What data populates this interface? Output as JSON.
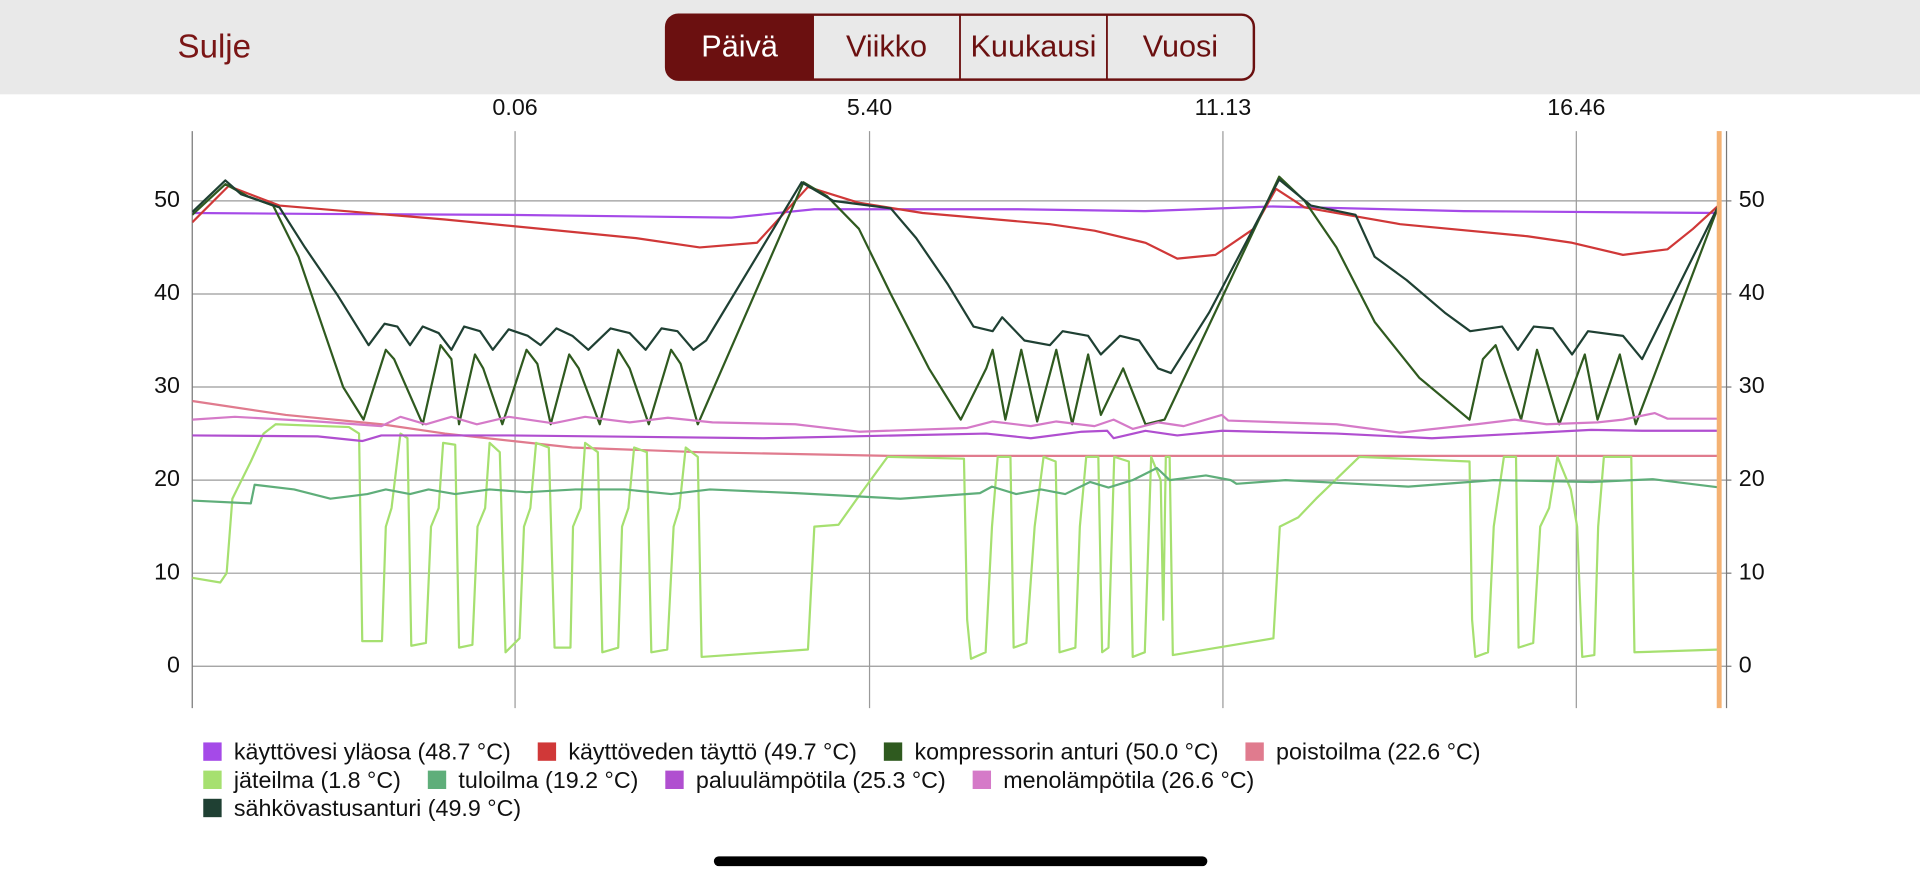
{
  "header": {
    "close": "Sulje",
    "tabs": [
      "Päivä",
      "Viikko",
      "Kuukausi",
      "Vuosi"
    ],
    "active_tab": 0
  },
  "chart_data": {
    "type": "line",
    "xlim": [
      -4.97,
      19.03
    ],
    "xticks": [
      {
        "value": 0.1,
        "label": "0.06"
      },
      {
        "value": 5.667,
        "label": "5.40"
      },
      {
        "value": 11.217,
        "label": "11.13"
      },
      {
        "value": 16.767,
        "label": "16.46"
      }
    ],
    "ylim": [
      -4.5,
      57.5
    ],
    "yticks": [
      0,
      10,
      20,
      30,
      40,
      50
    ],
    "y2lim": [
      -4.5,
      57.5
    ],
    "y2ticks": [
      0,
      10,
      20,
      30,
      40,
      50
    ],
    "grid": true,
    "series": [
      {
        "name": "käyttövesi yläosa (48.7 °C)",
        "color": "#a54ae8",
        "x": [
          -4.97,
          -3,
          0,
          3.5,
          4.8,
          8,
          10,
          12,
          15,
          19.03
        ],
        "values": [
          48.7,
          48.6,
          48.5,
          48.2,
          49.1,
          49.1,
          48.9,
          49.4,
          48.9,
          48.7
        ]
      },
      {
        "name": "käyttöveden täyttö (49.7 °C)",
        "color": "#d03838",
        "x": [
          -4.97,
          -4.4,
          -3.6,
          -1,
          2,
          3,
          3.9,
          4.7,
          5.5,
          6.5,
          8.5,
          9.2,
          10,
          10.5,
          11.1,
          11.7,
          12.05,
          12.5,
          14,
          16,
          16.7,
          17.5,
          18.2,
          18.6,
          19.03
        ],
        "values": [
          47.7,
          51.6,
          49.5,
          48,
          46,
          45,
          45.5,
          51.5,
          49.8,
          48.7,
          47.5,
          46.8,
          45.5,
          43.8,
          44.2,
          47,
          51.3,
          49.3,
          47.5,
          46.2,
          45.5,
          44.2,
          44.8,
          47,
          49.7
        ]
      },
      {
        "name": "kompressorin anturi (50.0 °C)",
        "color": "#2f5a1f",
        "x": [
          -4.97,
          -4.45,
          -4.1,
          -3.7,
          -3.3,
          -2.9,
          -2.6,
          -2.28,
          -1.93,
          -1.8,
          -1.35,
          -1.07,
          -0.9,
          -0.78,
          -0.53,
          -0.4,
          -0.1,
          0.28,
          0.45,
          0.66,
          0.95,
          1.1,
          1.43,
          1.72,
          1.9,
          2.2,
          2.55,
          2.7,
          2.97,
          4.63,
          5.0,
          5.5,
          6.0,
          6.6,
          7.1,
          7.5,
          7.6,
          7.8,
          8.05,
          8.3,
          8.6,
          8.85,
          9.1,
          9.3,
          9.65,
          10.0,
          10.3,
          12.1,
          12.5,
          13.0,
          13.6,
          14.3,
          15.09,
          15.3,
          15.5,
          15.9,
          16.15,
          16.5,
          16.9,
          17.1,
          17.45,
          17.7,
          19.03
        ],
        "values": [
          48.5,
          51.8,
          50.5,
          49.5,
          44,
          36,
          30,
          26.5,
          34,
          33,
          26,
          34.5,
          33,
          26,
          33.5,
          32,
          26,
          34,
          32.5,
          26,
          33.5,
          32,
          26,
          34,
          32,
          26,
          34,
          32.5,
          26,
          52,
          50.5,
          47,
          40,
          32,
          26.5,
          32,
          34,
          26.5,
          34,
          26.3,
          34,
          26,
          33.5,
          27,
          32,
          26,
          26.5,
          52.6,
          50,
          45,
          37,
          31,
          26.5,
          33,
          34.5,
          26.5,
          34,
          26,
          33.5,
          26.5,
          33.5,
          26,
          50
        ]
      },
      {
        "name": "poistoilma (22.6 °C)",
        "color": "#e07b8e",
        "x": [
          -4.97,
          -3.5,
          -2,
          -1,
          1,
          3,
          6,
          19.03
        ],
        "values": [
          28.5,
          27,
          26,
          25,
          23.5,
          23,
          22.6,
          22.6
        ]
      },
      {
        "name": "jäteilma (1.8 °C)",
        "color": "#a6e070",
        "x": [
          -4.97,
          -4.53,
          -4.43,
          -4.34,
          -4.05,
          -3.85,
          -3.66,
          -2.51,
          -2.35,
          -2.3,
          -1.99,
          -1.93,
          -1.84,
          -1.7,
          -1.59,
          -1.53,
          -1.3,
          -1.22,
          -1.1,
          -1.03,
          -0.84,
          -0.78,
          -0.57,
          -0.49,
          -0.37,
          -0.3,
          -0.14,
          -0.05,
          0.17,
          0.24,
          0.34,
          0.43,
          0.63,
          0.72,
          0.97,
          1.01,
          1.13,
          1.2,
          1.4,
          1.47,
          1.72,
          1.78,
          1.88,
          1.97,
          2.17,
          2.24,
          2.49,
          2.59,
          2.68,
          2.78,
          2.97,
          3.03,
          4.7,
          4.8,
          5.18,
          5.47,
          5.95,
          7.15,
          7.2,
          7.26,
          7.49,
          7.59,
          7.68,
          7.88,
          7.93,
          8.13,
          8.26,
          8.4,
          8.59,
          8.65,
          8.9,
          8.97,
          9.07,
          9.26,
          9.32,
          9.42,
          9.51,
          9.74,
          9.8,
          9.99,
          10.09,
          10.24,
          10.28,
          10.32,
          10.38,
          10.43,
          12.01,
          12.11,
          12.4,
          12.68,
          13.36,
          15.09,
          15.13,
          15.18,
          15.38,
          15.47,
          15.63,
          15.82,
          15.86,
          16.09,
          16.2,
          16.34,
          16.47,
          16.68,
          16.78,
          16.86,
          17.05,
          17.11,
          17.2,
          17.63,
          17.68,
          19.03
        ],
        "values": [
          9.5,
          9,
          10,
          18,
          22,
          25,
          26,
          25.7,
          25,
          2.7,
          2.7,
          15,
          17,
          25,
          24.5,
          2.2,
          2.5,
          15,
          17,
          24,
          23.8,
          2,
          2.3,
          15,
          17,
          24,
          23,
          1.5,
          3,
          15,
          17,
          24,
          23.5,
          2,
          2,
          15,
          17,
          24,
          23,
          1.5,
          2,
          15,
          17,
          23.5,
          23,
          1.5,
          1.8,
          15,
          17,
          23.5,
          22.5,
          1,
          1.8,
          15,
          15.2,
          18,
          22.5,
          22.3,
          5,
          0.8,
          1.5,
          15,
          22.5,
          22.5,
          2,
          2.5,
          15,
          22.5,
          22,
          1.5,
          2,
          15,
          22.5,
          22.5,
          1.5,
          2,
          22.5,
          22,
          1,
          1.5,
          22.5,
          20,
          5,
          22.5,
          22.5,
          1.2,
          3,
          15,
          16,
          18,
          22.5,
          22,
          5,
          1,
          1.5,
          15,
          22.5,
          22.5,
          2,
          2.5,
          15,
          17,
          22.5,
          19,
          15,
          1,
          1.2,
          15,
          22.5,
          22.5,
          1.5,
          1.8
        ]
      },
      {
        "name": "tuloilma (19.2 °C)",
        "color": "#5fae7a",
        "x": [
          -4.97,
          -4.05,
          -3.99,
          -3.37,
          -2.8,
          -2.22,
          -1.93,
          -1.55,
          -1.26,
          -0.84,
          -0.3,
          0.28,
          1.05,
          1.82,
          2.55,
          3.16,
          4.51,
          6.15,
          7.4,
          7.59,
          7.97,
          8.36,
          8.74,
          9.13,
          9.42,
          9.8,
          10.18,
          10.38,
          10.95,
          11.34,
          11.43,
          12.2,
          14.13,
          15.47,
          17.01,
          17.97,
          19.03
        ],
        "values": [
          17.8,
          17.5,
          19.5,
          19,
          18,
          18.5,
          19,
          18.5,
          19,
          18.5,
          19,
          18.7,
          19,
          19,
          18.5,
          19,
          18.6,
          18,
          18.6,
          19.3,
          18.5,
          19,
          18.5,
          19.8,
          19.2,
          20,
          21.3,
          20,
          20.5,
          20,
          19.6,
          20,
          19.3,
          20,
          19.8,
          20.1,
          19.2
        ]
      },
      {
        "name": "paluulämpötila (25.3 °C)",
        "color": "#b04fd0",
        "x": [
          -4.97,
          -3,
          -2.3,
          -2,
          0,
          4,
          7.5,
          8.2,
          9,
          9.4,
          9.5,
          10,
          10.5,
          11.2,
          13,
          14.5,
          17,
          17.8,
          19.03
        ],
        "values": [
          24.8,
          24.7,
          24.2,
          24.8,
          24.8,
          24.5,
          25,
          24.5,
          25.2,
          25.3,
          24.5,
          25.3,
          24.8,
          25.3,
          25,
          24.5,
          25.4,
          25.3,
          25.3
        ]
      },
      {
        "name": "menolämpötila (26.6 °C)",
        "color": "#d57ac8",
        "x": [
          -4.97,
          -4.3,
          -3,
          -2,
          -1.7,
          -1.3,
          -0.9,
          -0.5,
          0,
          0.7,
          1.2,
          1.9,
          2.5,
          3.2,
          4.5,
          5.5,
          7.2,
          7.6,
          8.2,
          8.6,
          9.2,
          9.5,
          9.8,
          10.2,
          10.6,
          11.2,
          11.3,
          13,
          14,
          15.2,
          15.8,
          16.3,
          17.1,
          17.5,
          18,
          18.2,
          19.03
        ],
        "values": [
          26.5,
          26.8,
          26.3,
          25.8,
          26.8,
          26,
          26.8,
          26,
          26.8,
          26.1,
          26.8,
          26.2,
          26.7,
          26.2,
          26,
          25.2,
          25.6,
          26.3,
          25.8,
          26.3,
          25.8,
          26.5,
          25.5,
          26.2,
          25.8,
          27,
          26.4,
          26,
          25.1,
          26,
          26.5,
          26,
          26.2,
          26.5,
          27.2,
          26.6,
          26.6
        ]
      },
      {
        "name": "sähkövastusanturi (49.9 °C)",
        "color": "#1f4033",
        "x": [
          -4.97,
          -4.45,
          -4.2,
          -3.6,
          -3.2,
          -2.7,
          -2.2,
          -1.95,
          -1.75,
          -1.55,
          -1.35,
          -1.1,
          -0.9,
          -0.7,
          -0.45,
          -0.25,
          0,
          0.3,
          0.5,
          0.75,
          1.0,
          1.25,
          1.6,
          1.9,
          2.15,
          2.4,
          2.65,
          2.9,
          3.1,
          4.6,
          5.1,
          6.0,
          6.4,
          6.9,
          7.3,
          7.6,
          7.75,
          8.1,
          8.5,
          8.7,
          9.1,
          9.3,
          9.6,
          9.9,
          10.2,
          10.4,
          11.0,
          12.1,
          12.6,
          13.3,
          13.6,
          14.1,
          14.7,
          15.1,
          15.6,
          15.85,
          16.1,
          16.4,
          16.7,
          16.95,
          17.5,
          17.8,
          19.03
        ],
        "values": [
          48.8,
          52.2,
          50.7,
          49.3,
          45,
          40,
          34.5,
          36.8,
          36.5,
          34.5,
          36.5,
          35.8,
          34,
          36.5,
          36,
          34,
          36.2,
          35.5,
          34.5,
          36.3,
          35.5,
          34,
          36.3,
          35.8,
          34,
          36.3,
          36,
          34,
          35,
          52,
          50,
          49.2,
          46,
          41,
          36.5,
          36,
          37.5,
          35,
          34.5,
          36,
          35.5,
          33.5,
          35.5,
          35,
          32,
          31.5,
          38,
          52.3,
          49.5,
          48.5,
          44,
          41.5,
          38,
          36,
          36.5,
          34,
          36.5,
          36.3,
          33.5,
          36,
          35.5,
          33,
          49.9
        ]
      }
    ]
  }
}
